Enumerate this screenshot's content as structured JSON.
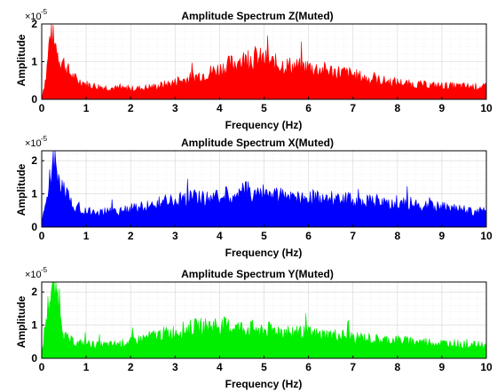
{
  "chart_data": [
    {
      "type": "area",
      "title": "Amplitude Spectrum Z(Muted)",
      "xlabel": "Frequency (Hz)",
      "ylabel": "Amplitude",
      "y_exponent_label": "×10",
      "y_exponent_power": "-5",
      "xlim": [
        0,
        10
      ],
      "ylim": [
        0,
        2
      ],
      "xticks": [
        "0",
        "1",
        "2",
        "3",
        "4",
        "5",
        "6",
        "7",
        "8",
        "9",
        "10"
      ],
      "yticks": [
        "0",
        "1",
        "2"
      ],
      "grid": true,
      "color": "#ff0000",
      "series": [
        {
          "x": [
            0,
            0.1,
            0.15,
            0.2,
            0.25,
            0.3,
            0.4,
            0.5,
            0.6,
            0.7,
            0.8,
            1.0,
            1.2,
            1.4,
            1.6,
            1.8,
            2.0,
            2.3,
            2.6,
            3.0,
            3.3,
            3.6,
            4.0,
            4.2,
            4.4,
            4.6,
            4.8,
            5.0,
            5.2,
            5.5,
            5.8,
            6.0,
            6.2,
            6.5,
            6.8,
            7.0,
            7.3,
            7.6,
            8.0,
            8.3,
            8.6,
            9.0,
            9.3,
            9.6,
            10.0
          ],
          "y": [
            0.05,
            0.6,
            1.2,
            1.9,
            1.6,
            1.35,
            1.1,
            0.95,
            0.75,
            0.6,
            0.5,
            0.4,
            0.35,
            0.32,
            0.3,
            0.28,
            0.28,
            0.3,
            0.35,
            0.45,
            0.55,
            0.65,
            0.8,
            0.9,
            1.0,
            1.05,
            1.1,
            1.05,
            0.95,
            0.9,
            0.85,
            0.85,
            0.8,
            0.75,
            0.7,
            0.65,
            0.55,
            0.5,
            0.45,
            0.4,
            0.38,
            0.36,
            0.35,
            0.34,
            0.33
          ]
        }
      ]
    },
    {
      "type": "area",
      "title": "Amplitude Spectrum X(Muted)",
      "xlabel": "Frequency (Hz)",
      "ylabel": "Amplitude",
      "y_exponent_label": "×10",
      "y_exponent_power": "-5",
      "xlim": [
        0,
        10
      ],
      "ylim": [
        0,
        2.3
      ],
      "xticks": [
        "0",
        "1",
        "2",
        "3",
        "4",
        "5",
        "6",
        "7",
        "8",
        "9",
        "10"
      ],
      "yticks": [
        "0",
        "1",
        "2"
      ],
      "grid": true,
      "color": "#0000ff",
      "series": [
        {
          "x": [
            0,
            0.1,
            0.2,
            0.25,
            0.3,
            0.35,
            0.4,
            0.5,
            0.6,
            0.7,
            0.8,
            1.0,
            1.2,
            1.5,
            1.8,
            2.0,
            2.3,
            2.6,
            3.0,
            3.3,
            3.6,
            4.0,
            4.3,
            4.6,
            4.8,
            5.0,
            5.3,
            5.6,
            6.0,
            6.3,
            6.6,
            7.0,
            7.3,
            7.6,
            8.0,
            8.3,
            8.6,
            9.0,
            9.3,
            9.6,
            10.0
          ],
          "y": [
            0.1,
            0.8,
            1.5,
            2.2,
            1.9,
            1.7,
            1.4,
            1.1,
            0.9,
            0.7,
            0.6,
            0.5,
            0.45,
            0.45,
            0.5,
            0.55,
            0.6,
            0.7,
            0.8,
            0.85,
            0.9,
            0.9,
            1.0,
            1.1,
            1.05,
            1.0,
            0.95,
            0.9,
            0.9,
            0.85,
            0.85,
            0.8,
            0.8,
            0.75,
            0.75,
            0.7,
            0.65,
            0.6,
            0.55,
            0.5,
            0.45
          ]
        }
      ]
    },
    {
      "type": "area",
      "title": "Amplitude Spectrum Y(Muted)",
      "xlabel": "Frequency (Hz)",
      "ylabel": "Amplitude",
      "y_exponent_label": "×10",
      "y_exponent_power": "-5",
      "xlim": [
        0,
        10
      ],
      "ylim": [
        0,
        2.3
      ],
      "xticks": [
        "0",
        "1",
        "2",
        "3",
        "4",
        "5",
        "6",
        "7",
        "8",
        "9",
        "10"
      ],
      "yticks": [
        "0",
        "1",
        "2"
      ],
      "grid": true,
      "color": "#00ee00",
      "series": [
        {
          "x": [
            0,
            0.1,
            0.2,
            0.25,
            0.3,
            0.35,
            0.4,
            0.45,
            0.5,
            0.6,
            0.7,
            0.8,
            1.0,
            1.2,
            1.5,
            1.8,
            2.0,
            2.3,
            2.6,
            3.0,
            3.3,
            3.6,
            3.9,
            4.2,
            4.5,
            4.8,
            5.0,
            5.3,
            5.6,
            6.0,
            6.3,
            6.6,
            7.0,
            7.3,
            7.6,
            8.0,
            8.3,
            8.6,
            9.0,
            9.3,
            9.6,
            10.0
          ],
          "y": [
            0.1,
            1.2,
            2.0,
            2.2,
            2.1,
            1.9,
            1.8,
            1.2,
            0.7,
            0.55,
            0.5,
            0.45,
            0.45,
            0.4,
            0.4,
            0.45,
            0.5,
            0.6,
            0.7,
            0.8,
            0.9,
            0.95,
            1.0,
            0.95,
            0.9,
            0.9,
            0.85,
            0.85,
            0.8,
            0.75,
            0.7,
            0.7,
            0.65,
            0.6,
            0.55,
            0.55,
            0.5,
            0.5,
            0.45,
            0.45,
            0.4,
            0.4
          ]
        }
      ]
    }
  ]
}
